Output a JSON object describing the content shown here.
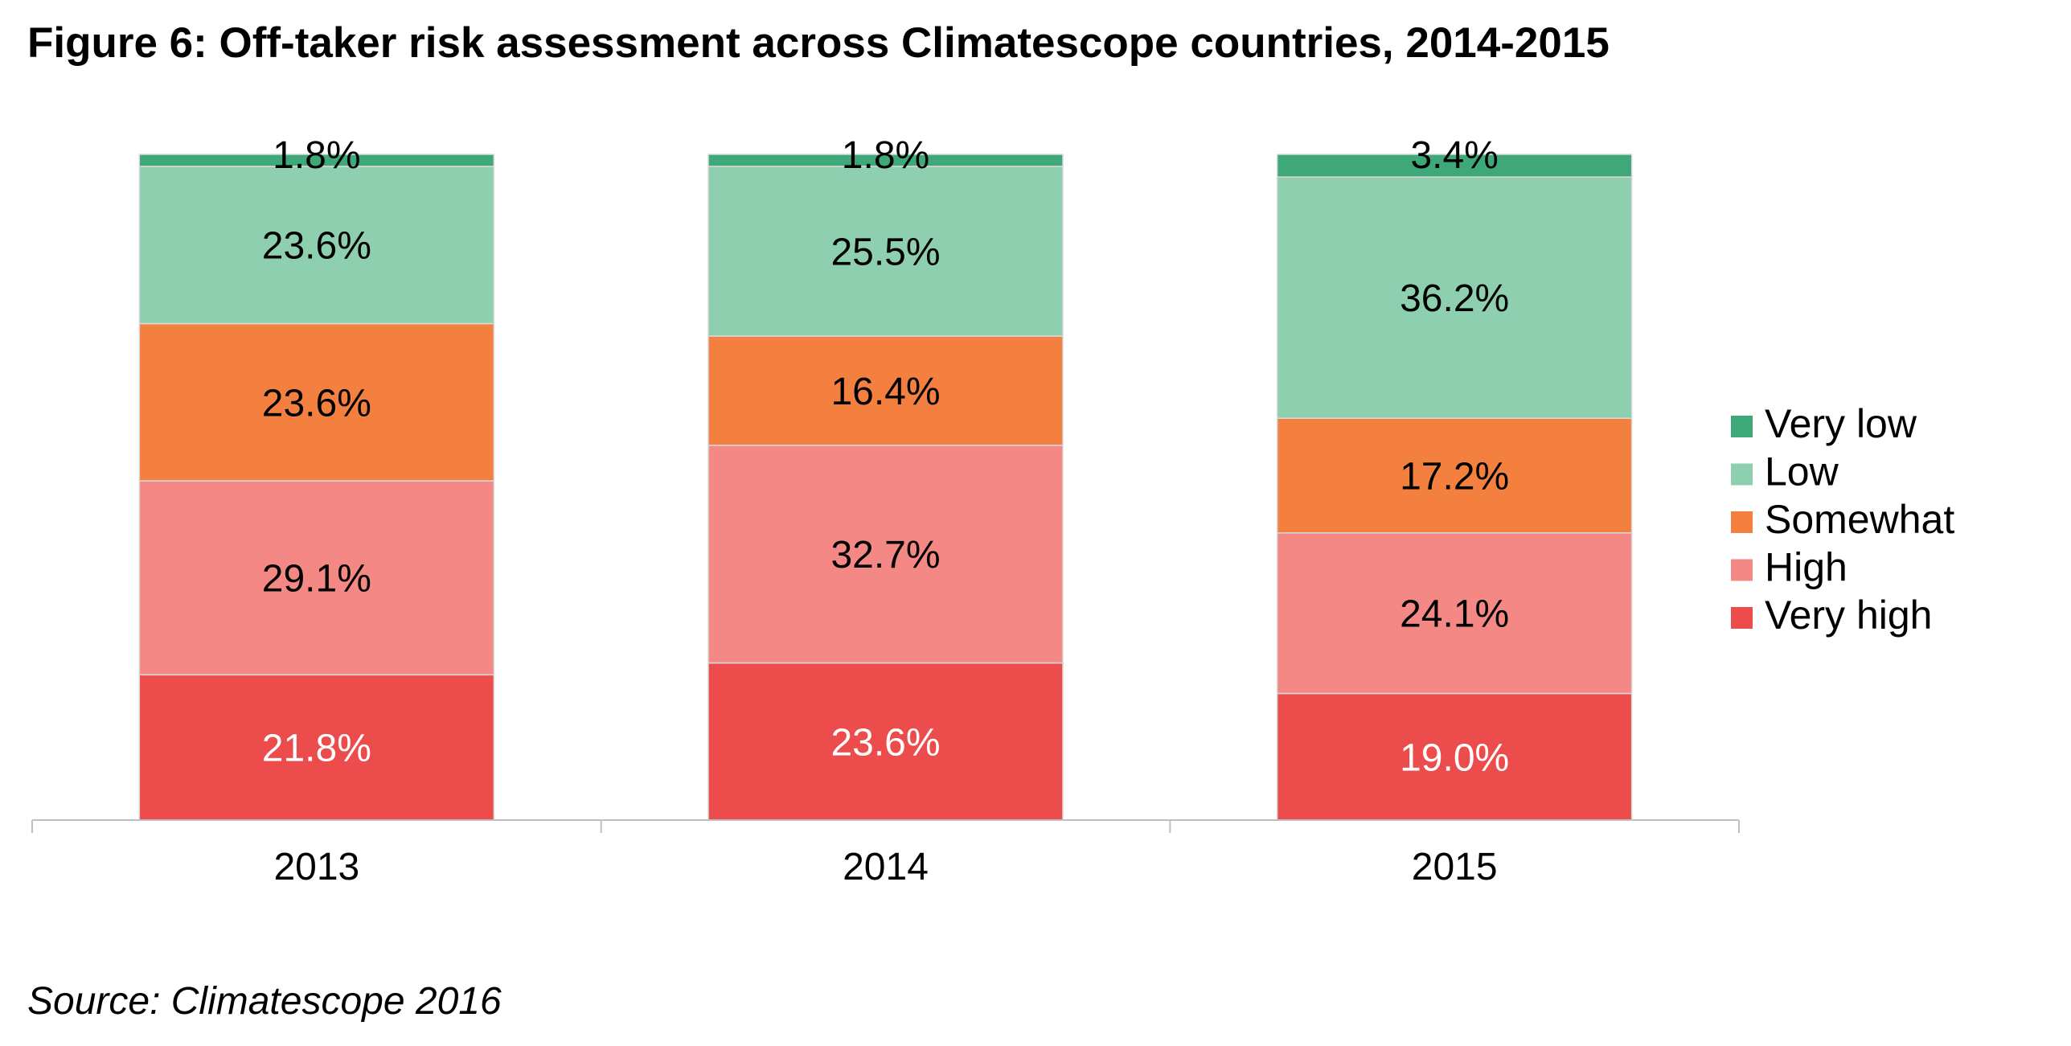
{
  "title": "Figure 6: Off-taker risk assessment across Climatescope countries, 2014-2015",
  "source": "Source: Climatescope 2016",
  "chart_data": {
    "type": "bar",
    "stacked": true,
    "normalized_percent": true,
    "categories": [
      "2013",
      "2014",
      "2015"
    ],
    "series": [
      {
        "name": "Very high",
        "color": "#ec4c4c",
        "label_color": "#ffffff",
        "values": [
          21.8,
          23.6,
          19.0
        ],
        "labels": [
          "21.8%",
          "23.6%",
          "19.0%"
        ]
      },
      {
        "name": "High",
        "color": "#f48884",
        "label_color": "#000000",
        "values": [
          29.1,
          32.7,
          24.1
        ],
        "labels": [
          "29.1%",
          "32.7%",
          "24.1%"
        ]
      },
      {
        "name": "Somewhat",
        "color": "#f48040",
        "label_color": "#000000",
        "values": [
          23.6,
          16.4,
          17.2
        ],
        "labels": [
          "23.6%",
          "16.4%",
          "17.2%"
        ]
      },
      {
        "name": "Low",
        "color": "#8ecfb0",
        "label_color": "#000000",
        "values": [
          23.6,
          25.5,
          36.2
        ],
        "labels": [
          "23.6%",
          "25.5%",
          "36.2%"
        ]
      },
      {
        "name": "Very low",
        "color": "#3ea878",
        "label_color": "#000000",
        "values": [
          1.8,
          1.8,
          3.4
        ],
        "labels": [
          "1.8%",
          "1.8%",
          "3.4%"
        ]
      }
    ],
    "legend": [
      "Very low",
      "Low",
      "Somewhat",
      "High",
      "Very high"
    ],
    "legend_position": "right",
    "grid": false,
    "y_axis_visible": false
  }
}
